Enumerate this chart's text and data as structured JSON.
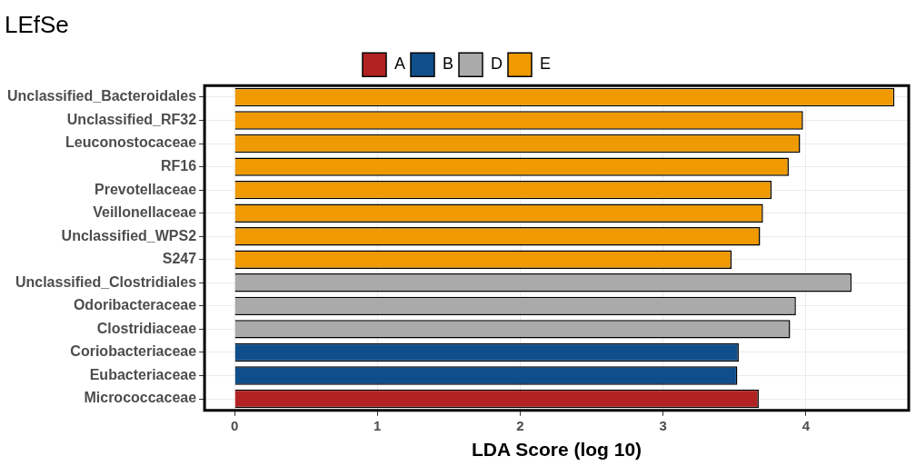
{
  "chart_data": {
    "type": "bar",
    "orientation": "horizontal",
    "title": "LEfSe",
    "xlabel": "LDA Score (log 10)",
    "categories": [
      "Unclassified_Bacteroidales",
      "Unclassified_RF32",
      "Leuconostocaceae",
      "RF16",
      "Prevotellaceae",
      "Veillonellaceae",
      "Unclassified_WPS2",
      "S247",
      "Unclassified_Clostridiales",
      "Odoribacteraceae",
      "Clostridiaceae",
      "Coriobacteriaceae",
      "Eubacteriaceae",
      "Micrococcaceae"
    ],
    "series": [
      {
        "name": "A",
        "color": "#b22222",
        "values": [
          null,
          null,
          null,
          null,
          null,
          null,
          null,
          null,
          null,
          null,
          null,
          null,
          null,
          3.67
        ]
      },
      {
        "name": "B",
        "color": "#104e8b",
        "values": [
          null,
          null,
          null,
          null,
          null,
          null,
          null,
          null,
          null,
          null,
          null,
          3.53,
          3.52,
          null
        ]
      },
      {
        "name": "D",
        "color": "#aaaaaa",
        "values": [
          null,
          null,
          null,
          null,
          null,
          null,
          null,
          null,
          4.32,
          3.93,
          3.89,
          null,
          null,
          null
        ]
      },
      {
        "name": "E",
        "color": "#ee9a00",
        "values": [
          4.62,
          3.98,
          3.96,
          3.88,
          3.76,
          3.7,
          3.68,
          3.48,
          null,
          null,
          null,
          null,
          null,
          null
        ]
      }
    ],
    "xlim": [
      -0.21,
      4.72
    ],
    "xticks": [
      0,
      1,
      2,
      3,
      4
    ],
    "grid": true,
    "legend": "top"
  }
}
